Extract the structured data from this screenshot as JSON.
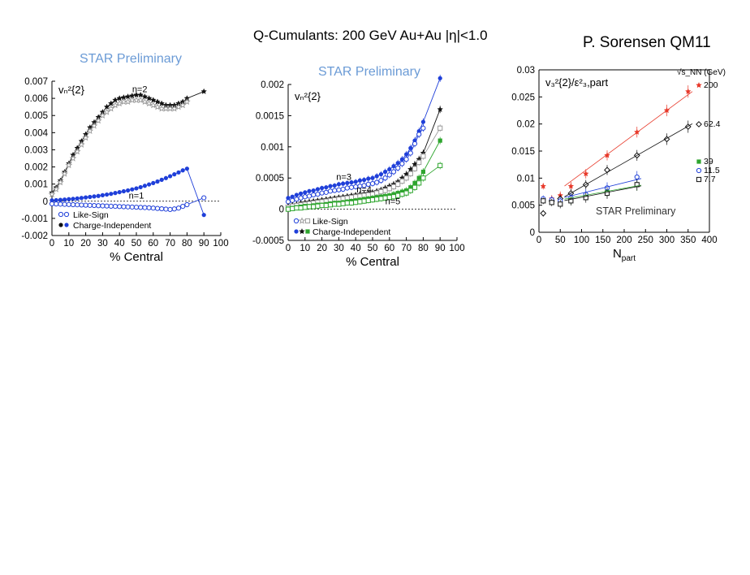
{
  "slide": {
    "title": "Q-Cumulants: 200 GeV Au+Au |η|<1.0",
    "author": "P. Sorensen  QM11",
    "prelim_left": "STAR Preliminary",
    "prelim_mid": "STAR Preliminary",
    "prelim_right": "STAR Preliminary"
  },
  "colors": {
    "blue": "#1f3fd9",
    "black": "#111111",
    "gray": "#9a9a9a",
    "green": "#2ea52e",
    "red": "#e8392a",
    "prelim": "#6b9bd6"
  },
  "chart_data": [
    {
      "type": "scatter",
      "title": "vₙ²{2}",
      "xlabel": "% Central",
      "ylabel": "",
      "xlim": [
        0,
        100
      ],
      "ylim": [
        -0.002,
        0.007
      ],
      "xticks": [
        "0",
        "10",
        "20",
        "30",
        "40",
        "50",
        "60",
        "70",
        "80",
        "90",
        "100"
      ],
      "yticks": [
        "-0.002",
        "-0.001",
        "0",
        "0.001",
        "0.002",
        "0.003",
        "0.004",
        "0.005",
        "0.006",
        "0.007"
      ],
      "annotations": [
        "n=2",
        "n=1"
      ],
      "legend": [
        "Like-Sign",
        "Charge-Independent"
      ],
      "series": [
        {
          "name": "n=2 Charge-Independent",
          "color": "black",
          "marker": "filled-star",
          "x": [
            0,
            2.5,
            5,
            7.5,
            10,
            12.5,
            15,
            17.5,
            20,
            22.5,
            25,
            27.5,
            30,
            32.5,
            35,
            37.5,
            40,
            42.5,
            45,
            47.5,
            50,
            52.5,
            55,
            57.5,
            60,
            62.5,
            65,
            67.5,
            70,
            72.5,
            75,
            77.5,
            80,
            90
          ],
          "y": [
            0.0005,
            0.0008,
            0.0012,
            0.0017,
            0.0022,
            0.0027,
            0.0031,
            0.0035,
            0.0039,
            0.0043,
            0.0046,
            0.0049,
            0.0052,
            0.0055,
            0.0057,
            0.0059,
            0.006,
            0.00605,
            0.0061,
            0.00615,
            0.0062,
            0.0062,
            0.0061,
            0.006,
            0.0059,
            0.0058,
            0.0057,
            0.0056,
            0.0056,
            0.0056,
            0.0057,
            0.0058,
            0.006,
            0.0064
          ]
        },
        {
          "name": "n=2 Like-Sign",
          "color": "gray",
          "marker": "open-star",
          "x": [
            0,
            2.5,
            5,
            7.5,
            10,
            12.5,
            15,
            17.5,
            20,
            22.5,
            25,
            27.5,
            30,
            32.5,
            35,
            37.5,
            40,
            42.5,
            45,
            47.5,
            50,
            52.5,
            55,
            57.5,
            60,
            62.5,
            65,
            67.5,
            70,
            72.5,
            75,
            77.5,
            80
          ],
          "y": [
            0.0004,
            0.0007,
            0.0011,
            0.0016,
            0.0021,
            0.0025,
            0.0029,
            0.0033,
            0.0037,
            0.0041,
            0.0044,
            0.0047,
            0.005,
            0.0052,
            0.0054,
            0.0056,
            0.0057,
            0.0058,
            0.0058,
            0.0059,
            0.0059,
            0.0059,
            0.0058,
            0.0057,
            0.0056,
            0.0055,
            0.0054,
            0.0054,
            0.0054,
            0.0054,
            0.0055,
            0.0056,
            0.0058
          ]
        },
        {
          "name": "n=1 Charge-Independent",
          "color": "blue",
          "marker": "filled-circle",
          "x": [
            0,
            2.5,
            5,
            7.5,
            10,
            12.5,
            15,
            17.5,
            20,
            22.5,
            25,
            27.5,
            30,
            32.5,
            35,
            37.5,
            40,
            42.5,
            45,
            47.5,
            50,
            52.5,
            55,
            57.5,
            60,
            62.5,
            65,
            67.5,
            70,
            72.5,
            75,
            77.5,
            80,
            90
          ],
          "y": [
            5e-05,
            6e-05,
            8e-05,
            0.0001,
            0.00012,
            0.00014,
            0.00016,
            0.00019,
            0.00022,
            0.00025,
            0.00028,
            0.00031,
            0.00035,
            0.00039,
            0.00043,
            0.00048,
            0.00053,
            0.00058,
            0.00063,
            0.00069,
            0.00075,
            0.00082,
            0.0009,
            0.00098,
            0.00106,
            0.00115,
            0.00125,
            0.00135,
            0.00146,
            0.00157,
            0.00168,
            0.0018,
            0.0019,
            -0.0008
          ]
        },
        {
          "name": "n=1 Like-Sign",
          "color": "blue",
          "marker": "open-circle",
          "x": [
            0,
            2.5,
            5,
            7.5,
            10,
            12.5,
            15,
            17.5,
            20,
            22.5,
            25,
            27.5,
            30,
            32.5,
            35,
            37.5,
            40,
            42.5,
            45,
            47.5,
            50,
            52.5,
            55,
            57.5,
            60,
            62.5,
            65,
            67.5,
            70,
            72.5,
            75,
            77.5,
            80,
            90
          ],
          "y": [
            -0.00015,
            -0.00016,
            -0.00017,
            -0.00018,
            -0.00019,
            -0.0002,
            -0.00021,
            -0.00022,
            -0.00023,
            -0.00024,
            -0.00025,
            -0.00026,
            -0.00027,
            -0.00028,
            -0.00029,
            -0.0003,
            -0.00031,
            -0.00032,
            -0.00033,
            -0.00034,
            -0.00035,
            -0.00036,
            -0.00037,
            -0.00038,
            -0.0004,
            -0.00042,
            -0.00044,
            -0.00046,
            -0.00048,
            -0.00045,
            -0.0004,
            -0.0003,
            -0.0002,
            0.0002
          ]
        }
      ]
    },
    {
      "type": "scatter",
      "title": "vₙ²{2}",
      "xlabel": "% Central",
      "ylabel": "",
      "xlim": [
        0,
        100
      ],
      "ylim": [
        -0.0005,
        0.002
      ],
      "xticks": [
        "0",
        "10",
        "20",
        "30",
        "40",
        "50",
        "60",
        "70",
        "80",
        "90",
        "100"
      ],
      "yticks": [
        "-0.0005",
        "0",
        "0.0005",
        "0.001",
        "0.0015",
        "0.002"
      ],
      "annotations": [
        "n=3",
        "n=4",
        "n=5"
      ],
      "legend": [
        "Like-Sign",
        "Charge-Independent"
      ],
      "series": [
        {
          "name": "n=3 Charge-Independent",
          "color": "blue",
          "marker": "filled-circle",
          "x": [
            0,
            2.5,
            5,
            7.5,
            10,
            12.5,
            15,
            17.5,
            20,
            22.5,
            25,
            27.5,
            30,
            32.5,
            35,
            37.5,
            40,
            42.5,
            45,
            47.5,
            50,
            52.5,
            55,
            57.5,
            60,
            62.5,
            65,
            67.5,
            70,
            72.5,
            75,
            77.5,
            80,
            90
          ],
          "y": [
            0.00018,
            0.0002,
            0.00023,
            0.00025,
            0.00027,
            0.00029,
            0.0003,
            0.00032,
            0.00034,
            0.00035,
            0.00037,
            0.00038,
            0.0004,
            0.00041,
            0.00042,
            0.00043,
            0.00044,
            0.00046,
            0.00047,
            0.00049,
            0.0005,
            0.00053,
            0.00056,
            0.0006,
            0.00064,
            0.00069,
            0.00074,
            0.0008,
            0.00088,
            0.00098,
            0.0011,
            0.00125,
            0.0014,
            0.0021
          ]
        },
        {
          "name": "n=3 Like-Sign",
          "color": "blue",
          "marker": "open-circle",
          "x": [
            0,
            2.5,
            5,
            7.5,
            10,
            12.5,
            15,
            17.5,
            20,
            22.5,
            25,
            27.5,
            30,
            32.5,
            35,
            37.5,
            40,
            42.5,
            45,
            47.5,
            50,
            52.5,
            55,
            57.5,
            60,
            62.5,
            65,
            67.5,
            70,
            72.5,
            75,
            77.5,
            80
          ],
          "y": [
            0.00012,
            0.00014,
            0.00016,
            0.00018,
            0.0002,
            0.00021,
            0.00023,
            0.00024,
            0.00026,
            0.00027,
            0.00029,
            0.0003,
            0.00031,
            0.00032,
            0.00034,
            0.00035,
            0.00036,
            0.00037,
            0.00038,
            0.0004,
            0.00041,
            0.00043,
            0.00046,
            0.0005,
            0.00055,
            0.0006,
            0.00066,
            0.00073,
            0.0008,
            0.0009,
            0.00105,
            0.0012,
            0.0013
          ]
        },
        {
          "name": "n=4 Charge-Independent",
          "color": "black",
          "marker": "filled-star",
          "x": [
            0,
            2.5,
            5,
            7.5,
            10,
            12.5,
            15,
            17.5,
            20,
            22.5,
            25,
            27.5,
            30,
            32.5,
            35,
            37.5,
            40,
            42.5,
            45,
            47.5,
            50,
            52.5,
            55,
            57.5,
            60,
            62.5,
            65,
            67.5,
            70,
            72.5,
            75,
            77.5,
            80,
            90
          ],
          "y": [
            5e-05,
            7e-05,
            8e-05,
            0.0001,
            0.00011,
            0.00012,
            0.00013,
            0.00014,
            0.00015,
            0.00016,
            0.00017,
            0.00018,
            0.00019,
            0.0002,
            0.00021,
            0.00022,
            0.00023,
            0.00024,
            0.00025,
            0.00026,
            0.00027,
            0.00029,
            0.00031,
            0.00034,
            0.00037,
            0.0004,
            0.00044,
            0.0005,
            0.00056,
            0.00064,
            0.00072,
            0.0008,
            0.0009,
            0.0016
          ]
        },
        {
          "name": "n=4 Like-Sign",
          "color": "gray",
          "marker": "open-square",
          "x": [
            0,
            2.5,
            5,
            7.5,
            10,
            12.5,
            15,
            17.5,
            20,
            22.5,
            25,
            27.5,
            30,
            32.5,
            35,
            37.5,
            40,
            42.5,
            45,
            47.5,
            50,
            52.5,
            55,
            57.5,
            60,
            62.5,
            65,
            67.5,
            70,
            72.5,
            75,
            77.5,
            80,
            90
          ],
          "y": [
            3e-05,
            5e-05,
            6e-05,
            7e-05,
            8e-05,
            9e-05,
            0.0001,
            0.00011,
            0.00012,
            0.00013,
            0.00014,
            0.00015,
            0.00016,
            0.00017,
            0.00018,
            0.00019,
            0.0002,
            0.00021,
            0.00022,
            0.00023,
            0.00024,
            0.00026,
            0.00028,
            0.0003,
            0.00033,
            0.00036,
            0.0004,
            0.00045,
            0.0005,
            0.00057,
            0.00065,
            0.00075,
            0.00085,
            0.0013
          ]
        },
        {
          "name": "n=5 Charge-Independent",
          "color": "green",
          "marker": "filled-square",
          "x": [
            0,
            2.5,
            5,
            7.5,
            10,
            12.5,
            15,
            17.5,
            20,
            22.5,
            25,
            27.5,
            30,
            32.5,
            35,
            37.5,
            40,
            42.5,
            45,
            47.5,
            50,
            52.5,
            55,
            57.5,
            60,
            62.5,
            65,
            67.5,
            70,
            72.5,
            75,
            77.5,
            80,
            90
          ],
          "y": [
            1e-05,
            2e-05,
            3e-05,
            4e-05,
            5e-05,
            5e-05,
            6e-05,
            7e-05,
            7e-05,
            8e-05,
            9e-05,
            0.0001,
            0.0001,
            0.00011,
            0.00012,
            0.00013,
            0.00014,
            0.00015,
            0.00016,
            0.00017,
            0.00018,
            0.00019,
            0.0002,
            0.00021,
            0.00022,
            0.00024,
            0.00026,
            0.00028,
            0.0003,
            0.00035,
            0.00042,
            0.0005,
            0.0006,
            0.0011
          ]
        },
        {
          "name": "n=5 Like-Sign",
          "color": "green",
          "marker": "open-square",
          "x": [
            0,
            2.5,
            5,
            7.5,
            10,
            12.5,
            15,
            17.5,
            20,
            22.5,
            25,
            27.5,
            30,
            32.5,
            35,
            37.5,
            40,
            42.5,
            45,
            47.5,
            50,
            52.5,
            55,
            57.5,
            60,
            62.5,
            65,
            67.5,
            70,
            72.5,
            75,
            77.5,
            80,
            90
          ],
          "y": [
            0.0,
            1e-05,
            2e-05,
            2e-05,
            3e-05,
            4e-05,
            4e-05,
            5e-05,
            6e-05,
            6e-05,
            7e-05,
            8e-05,
            8e-05,
            9e-05,
            0.0001,
            0.0001,
            0.00011,
            0.00012,
            0.00013,
            0.00014,
            0.00015,
            0.00016,
            0.00017,
            0.00018,
            0.00019,
            0.0002,
            0.00022,
            0.00024,
            0.00026,
            0.0003,
            0.00035,
            0.00042,
            0.0005,
            0.0007
          ]
        }
      ]
    },
    {
      "type": "scatter",
      "title": "v₃²{2}/ε²₃,part",
      "xlabel": "N_part",
      "ylabel": "",
      "xlim": [
        0,
        400
      ],
      "ylim": [
        0,
        0.03
      ],
      "xticks": [
        "0",
        "50",
        "100",
        "150",
        "200",
        "250",
        "300",
        "350",
        "400"
      ],
      "yticks": [
        "0",
        "0.005",
        "0.01",
        "0.015",
        "0.02",
        "0.025",
        "0.03"
      ],
      "annotations": [
        "√s_NN (GeV)"
      ],
      "legend": [
        "200",
        "62.4",
        "39",
        "11.5",
        "7.7"
      ],
      "series": [
        {
          "name": "200",
          "color": "red",
          "marker": "filled-star",
          "x": [
            10,
            30,
            50,
            75,
            110,
            160,
            230,
            300,
            350
          ],
          "y": [
            0.0085,
            0.0062,
            0.0068,
            0.0085,
            0.0108,
            0.0142,
            0.0185,
            0.0225,
            0.026
          ]
        },
        {
          "name": "62.4",
          "color": "black",
          "marker": "open-diamond",
          "x": [
            10,
            30,
            50,
            75,
            110,
            160,
            230,
            300,
            350
          ],
          "y": [
            0.0035,
            0.0058,
            0.0062,
            0.0072,
            0.0088,
            0.0115,
            0.0142,
            0.0172,
            0.0195
          ]
        },
        {
          "name": "39",
          "color": "green",
          "marker": "filled-square",
          "x": [
            10,
            30,
            50,
            75,
            110,
            160,
            230
          ],
          "y": [
            0.006,
            0.0058,
            0.0055,
            0.006,
            0.0068,
            0.0075,
            0.0088
          ]
        },
        {
          "name": "11.5",
          "color": "blue",
          "marker": "open-circle",
          "x": [
            10,
            30,
            50,
            75,
            110,
            160,
            230
          ],
          "y": [
            0.0062,
            0.006,
            0.0058,
            0.0064,
            0.007,
            0.0082,
            0.0102
          ]
        },
        {
          "name": "7.7",
          "color": "black",
          "marker": "open-square",
          "x": [
            10,
            30,
            50,
            75,
            110,
            160,
            230
          ],
          "y": [
            0.0058,
            0.0055,
            0.0052,
            0.0058,
            0.0064,
            0.0072,
            0.0088
          ]
        }
      ]
    }
  ]
}
